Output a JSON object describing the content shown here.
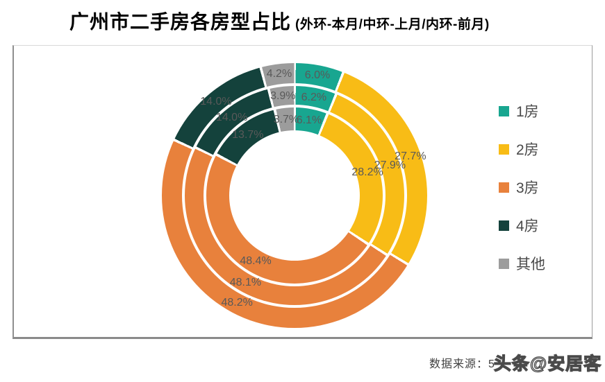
{
  "title": {
    "main": "广州市二手房各房型占比",
    "sub": "(外环-本月/中环-上月/内环-前月)"
  },
  "footer": {
    "source_label": "数据来源：5",
    "watermark": "头条@安居客"
  },
  "chart_data": {
    "type": "pie",
    "variant": "multi-ring-donut",
    "title": "广州市二手房各房型占比",
    "subtitle": "外环-本月/中环-上月/内环-前月",
    "categories": [
      "1房",
      "2房",
      "3房",
      "4房",
      "其他"
    ],
    "colors": [
      "#18A690",
      "#F8BC16",
      "#E8813C",
      "#14423C",
      "#9C9C9C"
    ],
    "label_color": "#595959",
    "legend_position": "right",
    "start_angle_deg": 0,
    "direction": "clockwise",
    "rings": [
      {
        "name": "外环-本月",
        "position": "outer",
        "values": [
          6.0,
          27.7,
          48.2,
          14.0,
          4.2
        ]
      },
      {
        "name": "中环-上月",
        "position": "middle",
        "values": [
          6.2,
          27.9,
          48.1,
          14.0,
          3.9
        ]
      },
      {
        "name": "内环-前月",
        "position": "inner",
        "values": [
          6.1,
          28.2,
          48.4,
          13.7,
          3.7
        ]
      }
    ]
  }
}
